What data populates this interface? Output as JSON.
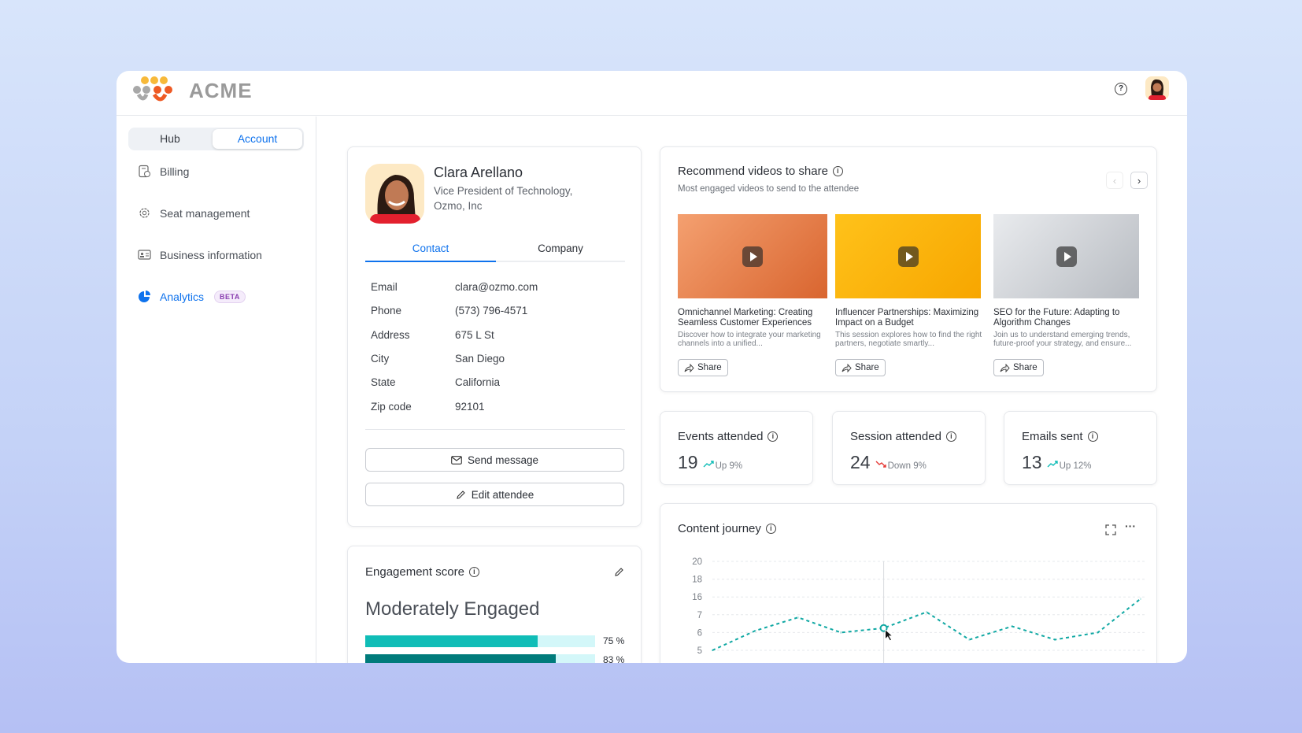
{
  "app": {
    "name": "ACME"
  },
  "sidebar": {
    "toggle": [
      "Hub",
      "Account"
    ],
    "active_toggle": "Account",
    "items": [
      {
        "label": "Billing",
        "icon": "billing-icon"
      },
      {
        "label": "Seat management",
        "icon": "gear-icon"
      },
      {
        "label": "Business information",
        "icon": "id-card-icon"
      },
      {
        "label": "Analytics",
        "icon": "pie-chart-icon",
        "badge": "BETA",
        "active": true
      }
    ]
  },
  "profile": {
    "name": "Clara Arellano",
    "title_line1": "Vice President of Technology,",
    "title_line2": "Ozmo, Inc",
    "tabs": [
      "Contact",
      "Company"
    ],
    "active_tab": "Contact",
    "fields": [
      {
        "label": "Email",
        "value": "clara@ozmo.com"
      },
      {
        "label": "Phone",
        "value": "(573) 796-4571"
      },
      {
        "label": "Address",
        "value": "675 L St"
      },
      {
        "label": "City",
        "value": "San Diego"
      },
      {
        "label": "State",
        "value": "California"
      },
      {
        "label": "Zip code",
        "value": "92101"
      }
    ],
    "send_label": "Send message",
    "edit_label": "Edit attendee"
  },
  "engagement": {
    "title": "Engagement score",
    "level": "Moderately Engaged",
    "bars": [
      {
        "value": 75,
        "label": "75 %",
        "color": "#10bdb7"
      },
      {
        "value": 83,
        "label": "83 %",
        "color": "#007b7b"
      }
    ]
  },
  "videos": {
    "title": "Recommend videos to share",
    "subtitle": "Most engaged videos to send to the attendee",
    "share_label": "Share",
    "items": [
      {
        "title": "Omnichannel Marketing: Creating Seamless Customer Experiences",
        "desc": "Discover how to integrate your marketing channels into a unified..."
      },
      {
        "title": "Influencer Partnerships: Maximizing Impact on a Budget",
        "desc": "This session explores how to find the right partners, negotiate smartly..."
      },
      {
        "title": "SEO for the Future: Adapting to Algorithm Changes",
        "desc": "Join us to understand emerging trends, future-proof your strategy, and ensure..."
      }
    ]
  },
  "stats": [
    {
      "title": "Events attended",
      "value": "19",
      "trend": "Up 9%",
      "dir": "up"
    },
    {
      "title": "Session attended",
      "value": "24",
      "trend": "Down 9%",
      "dir": "down"
    },
    {
      "title": "Emails sent",
      "value": "13",
      "trend": "Up 12%",
      "dir": "up"
    }
  ],
  "colors": {
    "accent": "#0e72ed",
    "up": "#10bdb7",
    "down": "#e53935",
    "line": "#10a8a3"
  },
  "chart_data": {
    "type": "line",
    "title": "Content journey",
    "y_ticks": [
      "20",
      "18",
      "16",
      "7",
      "6",
      "5"
    ],
    "grid": true,
    "line_style": "dashed",
    "series": [
      {
        "values": [
          5,
          6.1,
          6.85,
          6,
          6.25,
          8.35,
          5.6,
          6.35,
          5.6,
          6,
          15.1
        ]
      }
    ],
    "highlight_index": 4
  }
}
